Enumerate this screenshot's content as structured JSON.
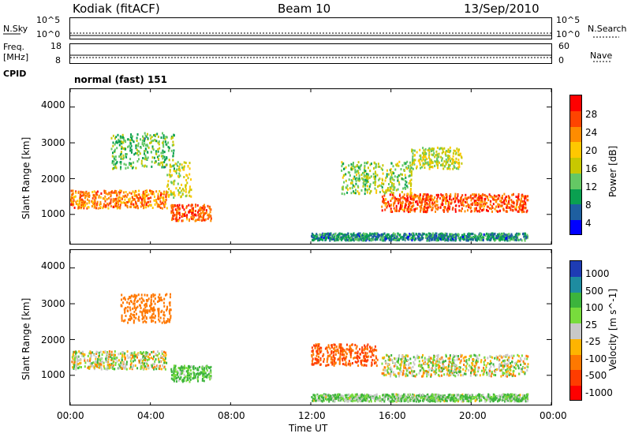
{
  "header": {
    "station": "Kodiak (fitACF)",
    "beam": "Beam 10",
    "date": "13/Sep/2010"
  },
  "top_panel": {
    "left_label": "N.Sky",
    "right_label": "N.Search",
    "left_ticks": [
      "10^5",
      "10^0"
    ],
    "right_ticks": [
      "10^5",
      "10^0"
    ]
  },
  "freq_panel": {
    "left_label_1": "Freq.",
    "left_label_2": "[MHz]",
    "left_ticks": [
      "18",
      "8"
    ],
    "right_label": "Nave",
    "right_ticks": [
      "60",
      "0"
    ],
    "cpid_label": "CPID",
    "cpid_value": "normal (fast) 151"
  },
  "x_axis": {
    "title": "Time UT",
    "ticks": [
      "00:00",
      "04:00",
      "08:00",
      "12:00",
      "16:00",
      "20:00",
      "00:00"
    ]
  },
  "power_colorbar": {
    "label": "Power [dB]",
    "ticks": [
      "28",
      "24",
      "20",
      "16",
      "12",
      "8",
      "4"
    ],
    "colors": [
      "#ff0000",
      "#ff4400",
      "#ff8c00",
      "#ffc800",
      "#c8c800",
      "#64c864",
      "#0aa050",
      "#1e5fa0",
      "#0000ff"
    ]
  },
  "velocity_colorbar": {
    "label": "Velocity [m s^-1]",
    "ticks": [
      "1000",
      "500",
      "100",
      "25",
      "-25",
      "-100",
      "-500",
      "-1000"
    ],
    "colors": [
      "#1e3cb4",
      "#1e8ca0",
      "#3cb43c",
      "#78dc3c",
      "#c8c8c8",
      "#ffb400",
      "#ff7800",
      "#ff3c00",
      "#ff0000"
    ]
  },
  "chart_data": [
    {
      "type": "heatmap",
      "title": "Power",
      "xlabel": "Time UT",
      "ylabel": "Slant Range [km]",
      "xlim": [
        "00:00",
        "24:00"
      ],
      "ylim": [
        180,
        4500
      ],
      "yticks": [
        "1000",
        "2000",
        "3000",
        "4000"
      ],
      "colorbar": "Power [dB]",
      "features": [
        {
          "time_start": 0.0,
          "time_end": 4.8,
          "range_start": 1200,
          "range_end": 1700,
          "power_db": 24
        },
        {
          "time_start": 4.8,
          "time_end": 6.0,
          "range_start": 1500,
          "range_end": 2500,
          "power_db": 16
        },
        {
          "time_start": 5.0,
          "time_end": 7.0,
          "range_start": 850,
          "range_end": 1300,
          "power_db": 26
        },
        {
          "time_start": 2.0,
          "time_end": 5.2,
          "range_start": 2300,
          "range_end": 3300,
          "power_db": 12
        },
        {
          "time_start": 12.0,
          "time_end": 22.8,
          "range_start": 300,
          "range_end": 500,
          "power_db": 8
        },
        {
          "time_start": 15.5,
          "time_end": 22.8,
          "range_start": 1100,
          "range_end": 1600,
          "power_db": 26
        },
        {
          "time_start": 13.5,
          "time_end": 17.0,
          "range_start": 1600,
          "range_end": 2500,
          "power_db": 14
        },
        {
          "time_start": 17.0,
          "time_end": 19.5,
          "range_start": 2300,
          "range_end": 2900,
          "power_db": 16
        }
      ]
    },
    {
      "type": "heatmap",
      "title": "Velocity",
      "xlabel": "Time UT",
      "ylabel": "Slant Range [km]",
      "xlim": [
        "00:00",
        "24:00"
      ],
      "ylim": [
        180,
        4500
      ],
      "yticks": [
        "1000",
        "2000",
        "3000",
        "4000"
      ],
      "colorbar": "Velocity [m s^-1]",
      "features": [
        {
          "time_start": 0.0,
          "time_end": 4.8,
          "range_start": 1200,
          "range_end": 1700,
          "velocity_ms": 0
        },
        {
          "time_start": 5.0,
          "time_end": 7.0,
          "range_start": 850,
          "range_end": 1300,
          "velocity_ms": 100
        },
        {
          "time_start": 12.0,
          "time_end": 15.3,
          "range_start": 1300,
          "range_end": 1900,
          "velocity_ms": -300
        },
        {
          "time_start": 15.5,
          "time_end": 22.8,
          "range_start": 1000,
          "range_end": 1600,
          "velocity_ms": 0
        },
        {
          "time_start": 12.0,
          "time_end": 22.8,
          "range_start": 300,
          "range_end": 500,
          "velocity_ms": 60
        },
        {
          "time_start": 2.5,
          "time_end": 5.0,
          "range_start": 2500,
          "range_end": 3300,
          "velocity_ms": -200
        }
      ]
    }
  ]
}
